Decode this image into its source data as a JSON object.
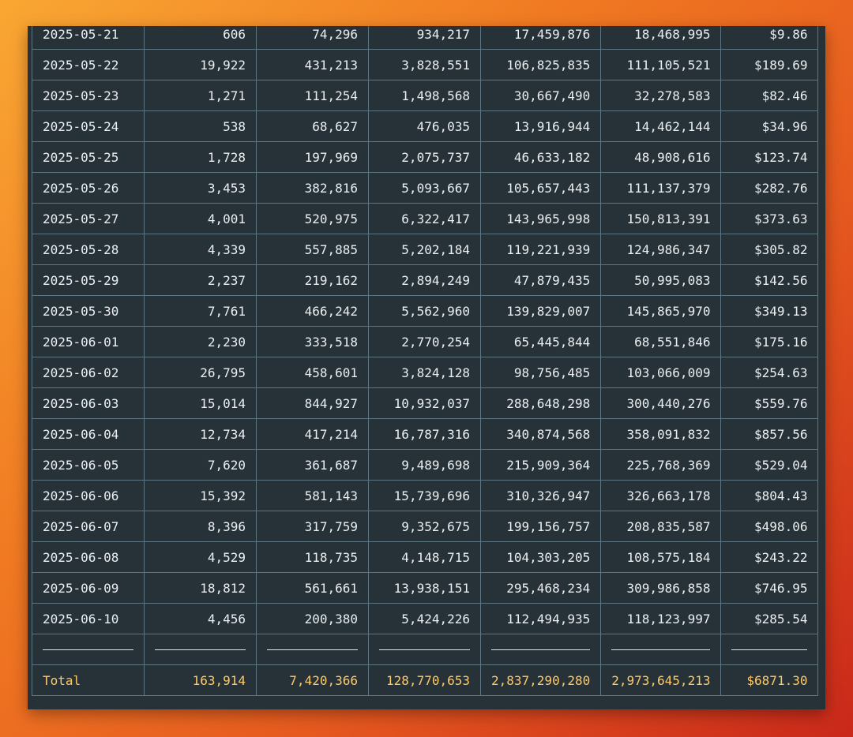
{
  "table": {
    "rows": [
      [
        "2025-05-21",
        "606",
        "74,296",
        "934,217",
        "17,459,876",
        "18,468,995",
        "$9.86"
      ],
      [
        "2025-05-22",
        "19,922",
        "431,213",
        "3,828,551",
        "106,825,835",
        "111,105,521",
        "$189.69"
      ],
      [
        "2025-05-23",
        "1,271",
        "111,254",
        "1,498,568",
        "30,667,490",
        "32,278,583",
        "$82.46"
      ],
      [
        "2025-05-24",
        "538",
        "68,627",
        "476,035",
        "13,916,944",
        "14,462,144",
        "$34.96"
      ],
      [
        "2025-05-25",
        "1,728",
        "197,969",
        "2,075,737",
        "46,633,182",
        "48,908,616",
        "$123.74"
      ],
      [
        "2025-05-26",
        "3,453",
        "382,816",
        "5,093,667",
        "105,657,443",
        "111,137,379",
        "$282.76"
      ],
      [
        "2025-05-27",
        "4,001",
        "520,975",
        "6,322,417",
        "143,965,998",
        "150,813,391",
        "$373.63"
      ],
      [
        "2025-05-28",
        "4,339",
        "557,885",
        "5,202,184",
        "119,221,939",
        "124,986,347",
        "$305.82"
      ],
      [
        "2025-05-29",
        "2,237",
        "219,162",
        "2,894,249",
        "47,879,435",
        "50,995,083",
        "$142.56"
      ],
      [
        "2025-05-30",
        "7,761",
        "466,242",
        "5,562,960",
        "139,829,007",
        "145,865,970",
        "$349.13"
      ],
      [
        "2025-06-01",
        "2,230",
        "333,518",
        "2,770,254",
        "65,445,844",
        "68,551,846",
        "$175.16"
      ],
      [
        "2025-06-02",
        "26,795",
        "458,601",
        "3,824,128",
        "98,756,485",
        "103,066,009",
        "$254.63"
      ],
      [
        "2025-06-03",
        "15,014",
        "844,927",
        "10,932,037",
        "288,648,298",
        "300,440,276",
        "$559.76"
      ],
      [
        "2025-06-04",
        "12,734",
        "417,214",
        "16,787,316",
        "340,874,568",
        "358,091,832",
        "$857.56"
      ],
      [
        "2025-06-05",
        "7,620",
        "361,687",
        "9,489,698",
        "215,909,364",
        "225,768,369",
        "$529.04"
      ],
      [
        "2025-06-06",
        "15,392",
        "581,143",
        "15,739,696",
        "310,326,947",
        "326,663,178",
        "$804.43"
      ],
      [
        "2025-06-07",
        "8,396",
        "317,759",
        "9,352,675",
        "199,156,757",
        "208,835,587",
        "$498.06"
      ],
      [
        "2025-06-08",
        "4,529",
        "118,735",
        "4,148,715",
        "104,303,205",
        "108,575,184",
        "$243.22"
      ],
      [
        "2025-06-09",
        "18,812",
        "561,661",
        "13,938,151",
        "295,468,234",
        "309,986,858",
        "$746.95"
      ],
      [
        "2025-06-10",
        "4,456",
        "200,380",
        "5,424,226",
        "112,494,935",
        "118,123,997",
        "$285.54"
      ]
    ],
    "total": [
      "Total",
      "163,914",
      "7,420,366",
      "128,770,653",
      "2,837,290,280",
      "2,973,645,213",
      "$6871.30"
    ]
  }
}
